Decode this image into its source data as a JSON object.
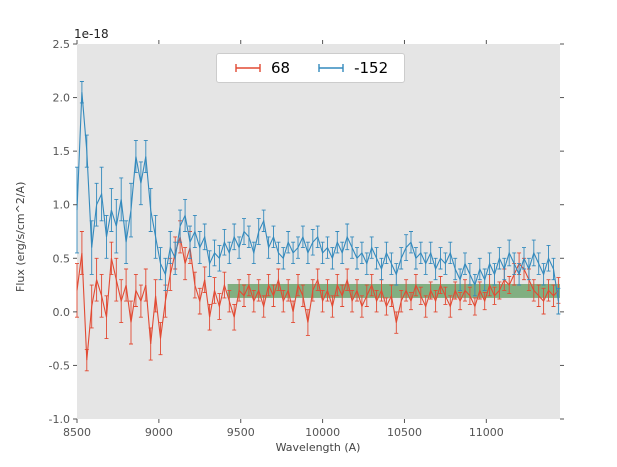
{
  "figure": {
    "offset_label": "1e-18",
    "xlabel": "Wavelength (A)",
    "ylabel": "Flux (erg/s/cm^2/A)",
    "background": "#ffffff",
    "plot_bg": "#e5e5e5",
    "tick_color": "#555555"
  },
  "legend": {
    "entries": [
      {
        "label": "68",
        "color": "#e24a33"
      },
      {
        "label": "-152",
        "color": "#348abd"
      }
    ]
  },
  "chart_data": {
    "type": "line",
    "title": "",
    "xlabel": "Wavelength (A)",
    "ylabel": "Flux (erg/s/cm^2/A)",
    "y_scale_factor": "1e-18",
    "xlim": [
      8500,
      11450
    ],
    "ylim": [
      -1.0,
      2.5
    ],
    "xticks": [
      8500,
      9000,
      9500,
      10000,
      10500,
      11000
    ],
    "yticks": [
      -1.0,
      -0.5,
      0.0,
      0.5,
      1.0,
      1.5,
      2.0,
      2.5
    ],
    "grid": false,
    "legend_position": "upper center",
    "x": [
      8500,
      8530,
      8560,
      8590,
      8620,
      8650,
      8680,
      8710,
      8740,
      8770,
      8800,
      8830,
      8860,
      8890,
      8920,
      8950,
      8980,
      9010,
      9040,
      9070,
      9100,
      9130,
      9160,
      9190,
      9220,
      9250,
      9280,
      9310,
      9340,
      9370,
      9400,
      9430,
      9460,
      9490,
      9520,
      9550,
      9580,
      9610,
      9640,
      9670,
      9700,
      9730,
      9760,
      9790,
      9820,
      9850,
      9880,
      9910,
      9940,
      9970,
      10000,
      10030,
      10060,
      10090,
      10120,
      10150,
      10180,
      10210,
      10240,
      10270,
      10300,
      10330,
      10360,
      10390,
      10420,
      10450,
      10480,
      10510,
      10540,
      10570,
      10600,
      10630,
      10660,
      10690,
      10720,
      10750,
      10780,
      10810,
      10840,
      10870,
      10900,
      10930,
      10960,
      10990,
      11020,
      11050,
      11080,
      11110,
      11140,
      11170,
      11200,
      11230,
      11260,
      11290,
      11320,
      11350,
      11380,
      11410,
      11440
    ],
    "series": [
      {
        "name": "68",
        "color": "#e24a33",
        "values": [
          0.2,
          0.55,
          -0.45,
          0.05,
          0.3,
          0.15,
          -0.05,
          0.5,
          0.3,
          0.1,
          0.25,
          -0.1,
          0.2,
          0.1,
          0.25,
          -0.3,
          0.15,
          -0.25,
          0.1,
          0.35,
          0.55,
          0.7,
          0.45,
          0.6,
          0.25,
          0.1,
          0.3,
          -0.05,
          0.2,
          0.05,
          0.25,
          0.1,
          -0.05,
          0.2,
          0.15,
          0.25,
          0.1,
          0.2,
          0.05,
          0.25,
          0.15,
          0.3,
          0.1,
          0.2,
          0.0,
          0.25,
          0.15,
          -0.1,
          0.2,
          0.3,
          0.1,
          0.2,
          0.05,
          0.25,
          0.15,
          0.3,
          0.1,
          0.2,
          0.05,
          0.15,
          0.25,
          0.1,
          0.2,
          0.05,
          0.15,
          -0.1,
          0.1,
          0.2,
          0.1,
          0.25,
          0.15,
          0.05,
          0.2,
          0.1,
          0.25,
          0.15,
          0.05,
          0.2,
          0.1,
          0.2,
          0.15,
          0.05,
          0.2,
          0.1,
          0.25,
          0.15,
          0.2,
          0.3,
          0.25,
          0.35,
          0.45,
          0.4,
          0.3,
          0.2,
          0.15,
          0.1,
          0.2,
          0.15,
          0.2
        ],
        "errors": [
          0.25,
          0.2,
          0.1,
          0.2,
          0.2,
          0.2,
          0.2,
          0.15,
          0.2,
          0.2,
          0.15,
          0.2,
          0.15,
          0.15,
          0.15,
          0.15,
          0.15,
          0.15,
          0.15,
          0.15,
          0.15,
          0.15,
          0.15,
          0.15,
          0.12,
          0.12,
          0.12,
          0.12,
          0.12,
          0.12,
          0.12,
          0.1,
          0.12,
          0.1,
          0.1,
          0.1,
          0.1,
          0.1,
          0.1,
          0.1,
          0.1,
          0.1,
          0.1,
          0.1,
          0.1,
          0.1,
          0.1,
          0.12,
          0.1,
          0.1,
          0.1,
          0.1,
          0.1,
          0.1,
          0.1,
          0.1,
          0.1,
          0.1,
          0.1,
          0.1,
          0.1,
          0.1,
          0.1,
          0.08,
          0.1,
          0.1,
          0.1,
          0.1,
          0.08,
          0.1,
          0.08,
          0.1,
          0.08,
          0.1,
          0.08,
          0.08,
          0.1,
          0.08,
          0.08,
          0.1,
          0.08,
          0.08,
          0.08,
          0.08,
          0.1,
          0.08,
          0.08,
          0.1,
          0.08,
          0.1,
          0.1,
          0.1,
          0.1,
          0.1,
          0.1,
          0.12,
          0.1,
          0.1,
          0.12
        ]
      },
      {
        "name": "-152",
        "color": "#348abd",
        "values": [
          0.95,
          2.05,
          1.5,
          0.6,
          1.0,
          1.1,
          0.7,
          0.95,
          0.8,
          1.05,
          0.65,
          0.95,
          1.45,
          1.2,
          1.45,
          0.95,
          0.7,
          0.45,
          0.35,
          0.6,
          0.5,
          0.8,
          0.9,
          0.65,
          0.75,
          0.6,
          0.7,
          0.45,
          0.55,
          0.5,
          0.65,
          0.55,
          0.7,
          0.6,
          0.75,
          0.7,
          0.55,
          0.75,
          0.85,
          0.6,
          0.7,
          0.55,
          0.5,
          0.65,
          0.55,
          0.6,
          0.7,
          0.55,
          0.65,
          0.7,
          0.55,
          0.6,
          0.5,
          0.65,
          0.55,
          0.7,
          0.6,
          0.5,
          0.55,
          0.45,
          0.6,
          0.5,
          0.4,
          0.55,
          0.45,
          0.35,
          0.5,
          0.6,
          0.65,
          0.5,
          0.55,
          0.45,
          0.55,
          0.4,
          0.5,
          0.45,
          0.55,
          0.4,
          0.3,
          0.45,
          0.35,
          0.25,
          0.4,
          0.3,
          0.45,
          0.35,
          0.5,
          0.4,
          0.55,
          0.45,
          0.35,
          0.5,
          0.4,
          0.55,
          0.45,
          0.35,
          0.5,
          0.4,
          0.1
        ],
        "errors": [
          0.4,
          0.1,
          0.15,
          0.25,
          0.2,
          0.25,
          0.2,
          0.2,
          0.25,
          0.2,
          0.2,
          0.25,
          0.15,
          0.2,
          0.15,
          0.2,
          0.2,
          0.15,
          0.15,
          0.15,
          0.15,
          0.15,
          0.15,
          0.15,
          0.15,
          0.15,
          0.12,
          0.12,
          0.12,
          0.12,
          0.12,
          0.1,
          0.12,
          0.1,
          0.12,
          0.1,
          0.1,
          0.12,
          0.1,
          0.1,
          0.1,
          0.1,
          0.1,
          0.1,
          0.1,
          0.1,
          0.1,
          0.1,
          0.12,
          0.1,
          0.1,
          0.1,
          0.1,
          0.1,
          0.1,
          0.12,
          0.1,
          0.1,
          0.1,
          0.1,
          0.1,
          0.1,
          0.1,
          0.1,
          0.1,
          0.1,
          0.1,
          0.12,
          0.1,
          0.1,
          0.1,
          0.1,
          0.1,
          0.1,
          0.1,
          0.1,
          0.1,
          0.1,
          0.1,
          0.1,
          0.1,
          0.1,
          0.1,
          0.1,
          0.1,
          0.1,
          0.1,
          0.1,
          0.12,
          0.1,
          0.1,
          0.1,
          0.1,
          0.12,
          0.1,
          0.1,
          0.12,
          0.1,
          0.12
        ]
      }
    ],
    "band": {
      "x_start": 9420,
      "x_end": 11450,
      "y_low": 0.13,
      "y_high": 0.26,
      "color": "#3d8b3d",
      "opacity": 0.6
    }
  }
}
